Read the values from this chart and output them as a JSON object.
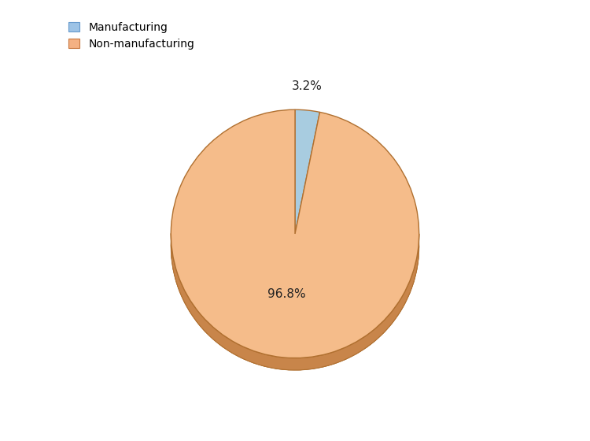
{
  "labels": [
    "Manufacturing",
    "Non-manufacturing"
  ],
  "values": [
    3.2,
    96.8
  ],
  "colors": [
    "#a8cce0",
    "#f5bc8a"
  ],
  "shadow_color": "#c8854a",
  "edge_color": "#b07030",
  "label_texts": [
    "3.2%",
    "96.8%"
  ],
  "legend_colors": [
    "#9dc3e6",
    "#f4b183"
  ],
  "legend_edge_colors": [
    "#6699cc",
    "#c87941"
  ],
  "background_color": "#ffffff",
  "startangle": 90
}
